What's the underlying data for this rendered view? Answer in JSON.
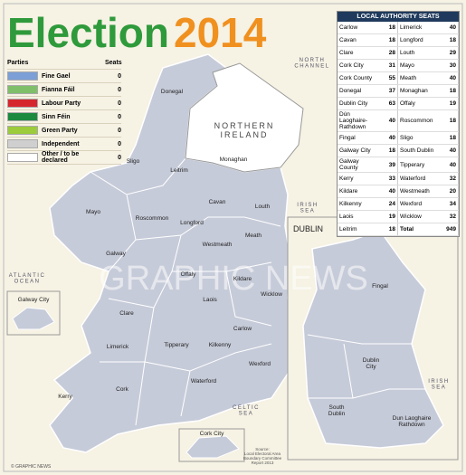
{
  "header": {
    "title_word": "Election",
    "title_year": "2014"
  },
  "parties": {
    "headers": [
      "Parties",
      "Seats"
    ],
    "rows": [
      {
        "name": "Fine Gael",
        "color": "#7b9fd6",
        "seats": 0
      },
      {
        "name": "Fianna Fáil",
        "color": "#7fbf6a",
        "seats": 0
      },
      {
        "name": "Labour Party",
        "color": "#d6262d",
        "seats": 0
      },
      {
        "name": "Sinn Féin",
        "color": "#1b8a3f",
        "seats": 0
      },
      {
        "name": "Green Party",
        "color": "#9ccb3b",
        "seats": 0
      },
      {
        "name": "Independent",
        "color": "#cfcfcf",
        "seats": 0
      },
      {
        "name": "Other / to be declared",
        "color": "#ffffff",
        "seats": 0
      }
    ]
  },
  "seats_table": {
    "title": "LOCAL AUTHORITY SEATS",
    "rows": [
      [
        "Carlow",
        18,
        "Limerick",
        40
      ],
      [
        "Cavan",
        18,
        "Longford",
        18
      ],
      [
        "Clare",
        28,
        "Louth",
        29
      ],
      [
        "Cork City",
        31,
        "Mayo",
        30
      ],
      [
        "Cork County",
        55,
        "Meath",
        40
      ],
      [
        "Donegal",
        37,
        "Monaghan",
        18
      ],
      [
        "Dublin City",
        63,
        "Offaly",
        19
      ],
      [
        "Dún Laoghaire-Rathdown",
        40,
        "Roscommon",
        18
      ],
      [
        "Fingal",
        40,
        "Sligo",
        18
      ],
      [
        "Galway City",
        18,
        "South Dublin",
        40
      ],
      [
        "Galway County",
        39,
        "Tipperary",
        40
      ],
      [
        "Kerry",
        33,
        "Waterford",
        32
      ],
      [
        "Kildare",
        40,
        "Westmeath",
        20
      ],
      [
        "Kilkenny",
        24,
        "Wexford",
        34
      ],
      [
        "Laois",
        19,
        "Wicklow",
        32
      ],
      [
        "Leitrim",
        18,
        "Total",
        949
      ]
    ]
  },
  "map": {
    "northern_ireland": [
      "NORTHERN",
      "IRELAND"
    ],
    "seas": [
      {
        "lines": [
          "NORTH",
          "CHANNEL"
        ]
      },
      {
        "lines": [
          "IRISH",
          "SEA"
        ]
      },
      {
        "lines": [
          "ATLANTIC",
          "OCEAN"
        ]
      },
      {
        "lines": [
          "CELTIC",
          "SEA"
        ]
      },
      {
        "lines": [
          "IRISH",
          "SEA"
        ]
      }
    ],
    "counties": [
      "Donegal",
      "Sligo",
      "Leitrim",
      "Monaghan",
      "Mayo",
      "Roscommon",
      "Longford",
      "Cavan",
      "Louth",
      "Galway",
      "Westmeath",
      "Meath",
      "Offaly",
      "Kildare",
      "Wicklow",
      "Clare",
      "Laois",
      "Limerick",
      "Tipperary",
      "Kilkenny",
      "Carlow",
      "Wexford",
      "Waterford",
      "Cork",
      "Kerry"
    ],
    "dublin": {
      "title": "DUBLIN",
      "labels": [
        {
          "lines": [
            "Fingal"
          ]
        },
        {
          "lines": [
            "Dublin",
            "City"
          ]
        },
        {
          "lines": [
            "South",
            "Dublin"
          ]
        },
        {
          "lines": [
            "Dun Laoghaire",
            "Rathdown"
          ]
        }
      ]
    },
    "insets": [
      "Galway City",
      "Cork City"
    ]
  },
  "source": [
    "Source:",
    "Local Electoral Area",
    "Boundary Committee",
    "Report 2013"
  ],
  "credit": "© GRAPHIC NEWS",
  "watermark": "GRAPHIC NEWS"
}
